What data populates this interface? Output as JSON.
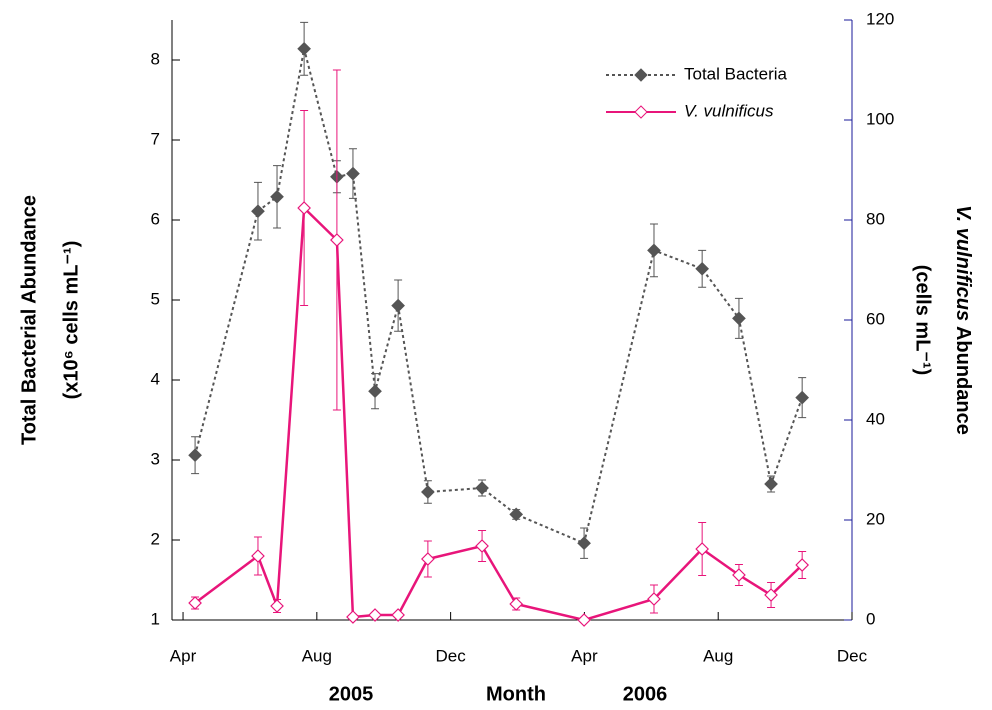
{
  "chart_data": {
    "type": "line",
    "y_label": [
      "Total Bacterial Abundance",
      "(x10⁶ cells mL⁻¹)"
    ],
    "y2_label": [
      "V. vulnificus",
      "Abundance",
      "(cells mL⁻¹)"
    ],
    "x_label": [
      "2005",
      "Month",
      "2006"
    ],
    "x": [
      0.36,
      2.24,
      2.81,
      3.62,
      4.6,
      5.08,
      5.74,
      6.43,
      7.32,
      8.94,
      9.96,
      11.99,
      14.08,
      15.52,
      16.62,
      17.58,
      18.51
    ],
    "xlim": [
      -0.33,
      20
    ],
    "xticks": [
      {
        "value": 0,
        "label": "Apr"
      },
      {
        "value": 4,
        "label": "Aug"
      },
      {
        "value": 8,
        "label": "Dec"
      },
      {
        "value": 12,
        "label": "Apr"
      },
      {
        "value": 16,
        "label": "Aug"
      },
      {
        "value": 20,
        "label": "Dec"
      }
    ],
    "ylim": [
      1,
      8.5
    ],
    "yticks": [
      1,
      2,
      3,
      4,
      5,
      6,
      7,
      8
    ],
    "y2lim": [
      0,
      120
    ],
    "y2ticks": [
      0,
      20,
      40,
      60,
      80,
      100,
      120
    ],
    "y2_axis_color": "#1a1a99",
    "series": [
      {
        "name": "Total Bacteria",
        "color": "#555555",
        "line_style": "dotted",
        "marker_fill": "filled",
        "values": [
          3.06,
          6.11,
          6.29,
          8.14,
          6.54,
          6.58,
          3.86,
          4.93,
          2.6,
          2.65,
          2.32,
          1.96,
          5.62,
          5.39,
          4.77,
          2.7,
          3.78
        ],
        "errors": [
          0.23,
          0.36,
          0.39,
          0.33,
          0.2,
          0.31,
          0.22,
          0.32,
          0.14,
          0.1,
          0.06,
          0.19,
          0.33,
          0.23,
          0.25,
          0.1,
          0.25
        ]
      },
      {
        "name": "V. vulnificus",
        "color": "#e8157a",
        "axis": "y2",
        "line_style": "solid",
        "marker_fill": "open",
        "values": [
          3.4,
          12.8,
          2.8,
          82.4,
          76,
          0.6,
          1,
          1,
          12.2,
          14.8,
          3.2,
          0,
          4.2,
          14.2,
          9,
          5,
          11
        ],
        "errors": [
          1.2,
          3.8,
          1.3,
          19.5,
          34,
          null,
          null,
          null,
          3.6,
          3.1,
          1.2,
          null,
          2.8,
          5.3,
          2.1,
          2.5,
          2.7
        ]
      }
    ]
  }
}
